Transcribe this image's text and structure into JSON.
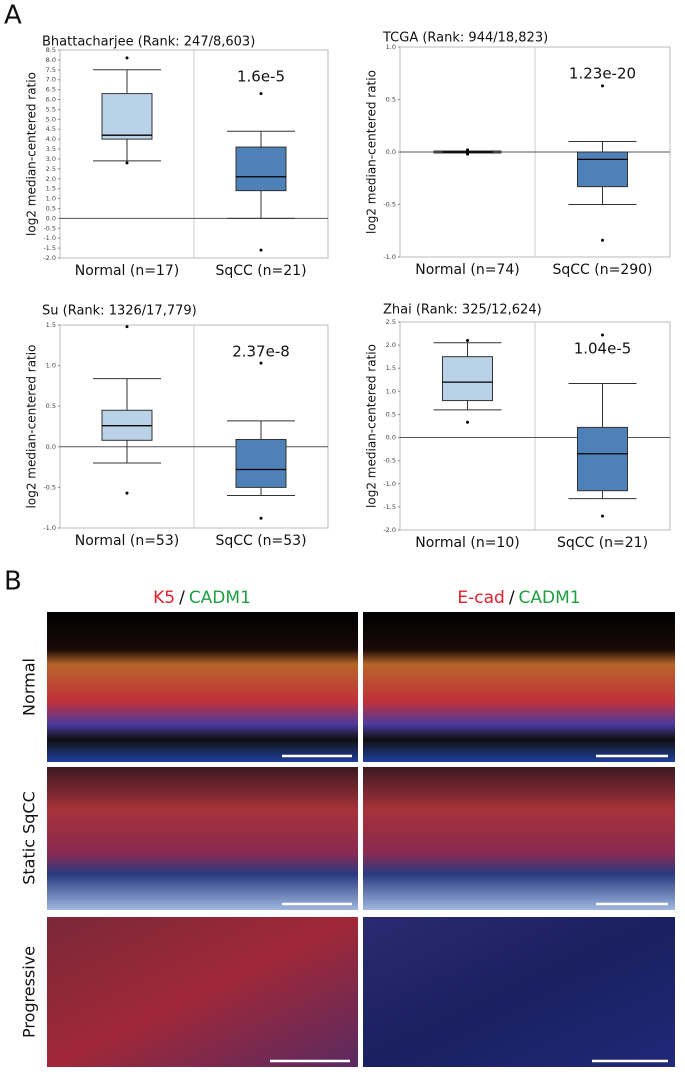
{
  "panel_labels": [
    "A",
    "B"
  ],
  "chart_data": [
    {
      "type": "box",
      "title": "Bhattacharjee (Rank: 247/8,603)",
      "ylabel": "log2 median-centered ratio",
      "categories": [
        "Normal (n=17)",
        "SqCC (n=21)"
      ],
      "colors": [
        "#bad2e8",
        "#4d81b8"
      ],
      "boxes": [
        {
          "whislo": 2.9,
          "q1": 4.0,
          "med": 4.2,
          "q3": 6.3,
          "whishi": 7.5,
          "fliers": [
            8.1,
            2.8
          ]
        },
        {
          "whislo": 0.0,
          "q1": 1.4,
          "med": 2.1,
          "q3": 3.6,
          "whishi": 4.4,
          "fliers": [
            6.3,
            -1.6
          ]
        }
      ],
      "annotation": "1.6e-5",
      "ylim": [
        -2,
        8.5
      ],
      "yticks": [
        {
          "value": 8.5,
          "label": "8.5"
        },
        {
          "value": 8,
          "label": "8.0"
        },
        {
          "value": 7.5,
          "label": "7.5"
        },
        {
          "value": 7,
          "label": "7.0"
        },
        {
          "value": 6.5,
          "label": "6.5"
        },
        {
          "value": 6,
          "label": "6.0"
        },
        {
          "value": 5.5,
          "label": "5.5"
        },
        {
          "value": 5,
          "label": "5.0"
        },
        {
          "value": 4.5,
          "label": "4.5"
        },
        {
          "value": 4,
          "label": "4.0"
        },
        {
          "value": 3.5,
          "label": "3.5"
        },
        {
          "value": 3,
          "label": "3.0"
        },
        {
          "value": 2.5,
          "label": "2.5"
        },
        {
          "value": 2,
          "label": "2.0"
        },
        {
          "value": 1.5,
          "label": "1.5"
        },
        {
          "value": 1,
          "label": "1.0"
        },
        {
          "value": 0.5,
          "label": "0.5"
        },
        {
          "value": 0,
          "label": "0.0"
        },
        {
          "value": -0.5,
          "label": "-0.5"
        },
        {
          "value": -1,
          "label": "-1.0"
        },
        {
          "value": -1.5,
          "label": "-1.5"
        },
        {
          "value": -2,
          "label": "-2.0"
        }
      ]
    },
    {
      "type": "box",
      "title": "TCGA (Rank: 944/18,823)",
      "ylabel": "log2 median-centered ratio",
      "categories": [
        "Normal (n=74)",
        "SqCC (n=290)"
      ],
      "colors": [
        "#bad2e8",
        "#4d81b8"
      ],
      "boxes": [
        {
          "whislo": -0.01,
          "q1": 0.0,
          "med": 0.0,
          "q3": 0.005,
          "whishi": 0.01,
          "fliers": [
            0.02,
            -0.02
          ]
        },
        {
          "whislo": -0.5,
          "q1": -0.33,
          "med": -0.07,
          "q3": 0.0,
          "whishi": 0.1,
          "fliers": [
            0.63,
            -0.84
          ]
        }
      ],
      "annotation": "1.23e-20",
      "ylim": [
        -1,
        1
      ],
      "yticks": [
        {
          "value": 1,
          "label": "1.0"
        },
        0.5,
        {
          "value": 0,
          "label": "0.0"
        },
        -0.5,
        {
          "value": -1,
          "label": "-1.0"
        }
      ]
    },
    {
      "type": "box",
      "title": "Su (Rank: 1326/17,779)",
      "ylabel": "log2 median-centered ratio",
      "categories": [
        "Normal (n=53)",
        "SqCC (n=53)"
      ],
      "colors": [
        "#bad2e8",
        "#4d81b8"
      ],
      "boxes": [
        {
          "whislo": -0.2,
          "q1": 0.08,
          "med": 0.26,
          "q3": 0.45,
          "whishi": 0.84,
          "fliers": [
            1.48,
            -0.57
          ]
        },
        {
          "whislo": -0.6,
          "q1": -0.5,
          "med": -0.28,
          "q3": 0.09,
          "whishi": 0.32,
          "fliers": [
            1.03,
            -0.88
          ]
        }
      ],
      "annotation": "2.37e-8",
      "ylim": [
        -1,
        1.5
      ],
      "yticks": [
        1.5,
        {
          "value": 1,
          "label": "1.0"
        },
        0.5,
        {
          "value": 0,
          "label": "0.0"
        },
        -0.5,
        {
          "value": -1,
          "label": "-1.0"
        }
      ]
    },
    {
      "type": "box",
      "title": "Zhai (Rank: 325/12,624)",
      "ylabel": "log2 median-centered ratio",
      "categories": [
        "Normal (n=10)",
        "SqCC (n=21)"
      ],
      "colors": [
        "#bad2e8",
        "#4d81b8"
      ],
      "boxes": [
        {
          "whislo": 0.6,
          "q1": 0.8,
          "med": 1.2,
          "q3": 1.75,
          "whishi": 2.05,
          "fliers": [
            2.1,
            0.33
          ]
        },
        {
          "whislo": -1.32,
          "q1": -1.15,
          "med": -0.35,
          "q3": 0.22,
          "whishi": 1.17,
          "fliers": [
            2.22,
            -1.7
          ]
        }
      ],
      "annotation": "1.04e-5",
      "ylim": [
        -2,
        2.5
      ],
      "yticks": [
        2.5,
        {
          "value": 2,
          "label": "2.0"
        },
        1.5,
        {
          "value": 1,
          "label": "1.0"
        },
        0.5,
        {
          "value": 0,
          "label": "0.0"
        },
        -0.5,
        {
          "value": -1,
          "label": "-1.0"
        },
        -1.5,
        {
          "value": -2,
          "label": "-2.0"
        }
      ]
    }
  ],
  "panel_b": {
    "columns": [
      [
        "K5",
        "/",
        "CADM1"
      ],
      [
        "E-cad",
        "/",
        "CADM1"
      ]
    ],
    "rows": [
      "Normal",
      "Static SqCC",
      "Progressive"
    ]
  }
}
